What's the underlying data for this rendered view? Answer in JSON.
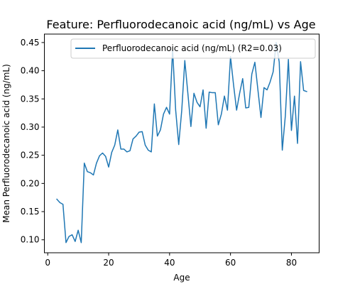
{
  "chart_data": {
    "type": "line",
    "title": "Feature: Perfluorodecanoic acid (ng/mL) vs Age",
    "xlabel": "Age",
    "ylabel": "Mean Perfluorodecanoic acid (ng/mL)",
    "xlim": [
      -1.1,
      89.1
    ],
    "ylim": [
      0.077,
      0.465
    ],
    "xticks": [
      0,
      20,
      40,
      60,
      80
    ],
    "xtick_labels": [
      "0",
      "20",
      "40",
      "60",
      "80"
    ],
    "yticks": [
      0.1,
      0.15,
      0.2,
      0.25,
      0.3,
      0.35,
      0.4,
      0.45
    ],
    "ytick_labels": [
      "0.10",
      "0.15",
      "0.20",
      "0.25",
      "0.30",
      "0.35",
      "0.40",
      "0.45"
    ],
    "grid": false,
    "legend_position": "top-right",
    "series": [
      {
        "name": "Perfluorodecanoic acid (ng/mL) (R2=0.03)",
        "color": "#1f77b4",
        "x": [
          3,
          4,
          5,
          6,
          7,
          8,
          9,
          10,
          11,
          12,
          13,
          14,
          15,
          16,
          17,
          18,
          19,
          20,
          21,
          22,
          23,
          24,
          25,
          26,
          27,
          28,
          29,
          30,
          31,
          32,
          33,
          34,
          35,
          36,
          37,
          38,
          39,
          40,
          41,
          42,
          43,
          44,
          45,
          46,
          47,
          48,
          49,
          50,
          51,
          52,
          53,
          54,
          55,
          56,
          57,
          58,
          59,
          60,
          61,
          62,
          63,
          64,
          65,
          66,
          67,
          68,
          69,
          70,
          71,
          72,
          73,
          74,
          75,
          76,
          77,
          78,
          79,
          80,
          81,
          82,
          83,
          84,
          85
        ],
        "y": [
          0.172,
          0.166,
          0.163,
          0.095,
          0.106,
          0.109,
          0.097,
          0.117,
          0.095,
          0.236,
          0.221,
          0.219,
          0.215,
          0.236,
          0.249,
          0.254,
          0.248,
          0.229,
          0.255,
          0.268,
          0.295,
          0.261,
          0.261,
          0.256,
          0.258,
          0.279,
          0.284,
          0.291,
          0.292,
          0.268,
          0.259,
          0.256,
          0.341,
          0.284,
          0.295,
          0.323,
          0.335,
          0.323,
          0.438,
          0.33,
          0.269,
          0.33,
          0.418,
          0.36,
          0.301,
          0.36,
          0.344,
          0.336,
          0.366,
          0.298,
          0.362,
          0.361,
          0.361,
          0.304,
          0.323,
          0.355,
          0.33,
          0.425,
          0.375,
          0.33,
          0.36,
          0.386,
          0.334,
          0.335,
          0.394,
          0.415,
          0.366,
          0.317,
          0.37,
          0.366,
          0.38,
          0.398,
          0.45,
          0.415,
          0.259,
          0.32,
          0.42,
          0.294,
          0.355,
          0.271,
          0.416,
          0.365,
          0.363
        ]
      }
    ]
  }
}
